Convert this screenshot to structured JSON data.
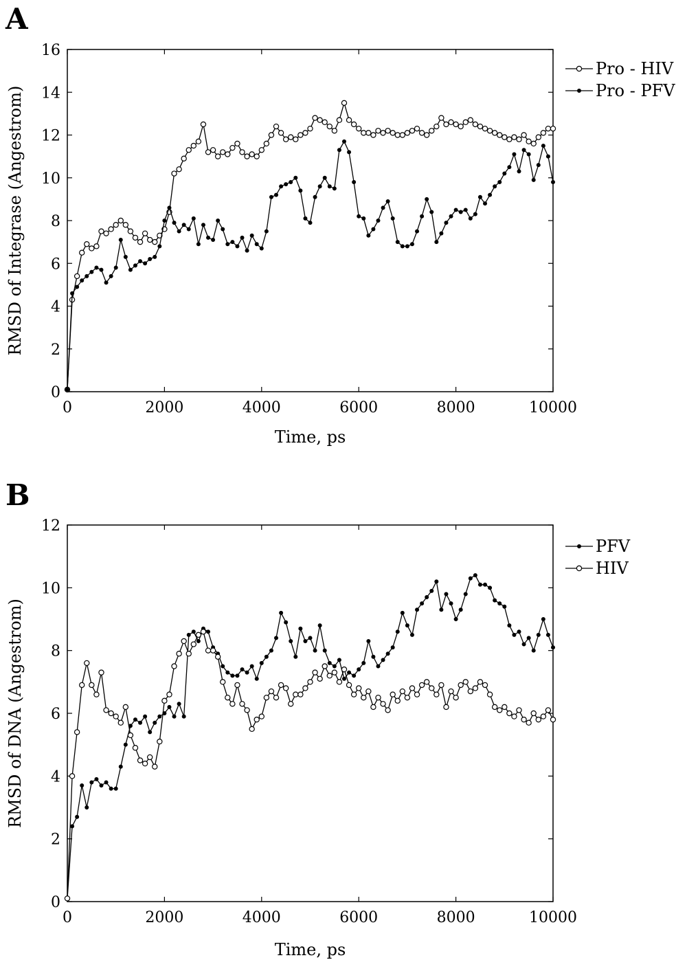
{
  "chart_data": [
    {
      "panel": "A",
      "type": "line",
      "xlabel": "Time, ps",
      "ylabel": "RMSD of Integrase (Angestrom)",
      "xlim": [
        0,
        10000
      ],
      "ylim": [
        0,
        16
      ],
      "xticks": [
        0,
        2000,
        4000,
        6000,
        8000,
        10000
      ],
      "yticks": [
        0,
        2,
        4,
        6,
        8,
        10,
        12,
        14,
        16
      ],
      "legend_position": "right-top",
      "series": [
        {
          "name": "Pro - HIV",
          "marker": "open-circle",
          "x": [
            0,
            100,
            200,
            300,
            400,
            500,
            600,
            700,
            800,
            900,
            1000,
            1100,
            1200,
            1300,
            1400,
            1500,
            1600,
            1700,
            1800,
            1900,
            2000,
            2100,
            2200,
            2300,
            2400,
            2500,
            2600,
            2700,
            2800,
            2900,
            3000,
            3100,
            3200,
            3300,
            3400,
            3500,
            3600,
            3700,
            3800,
            3900,
            4000,
            4100,
            4200,
            4300,
            4400,
            4500,
            4600,
            4700,
            4800,
            4900,
            5000,
            5100,
            5200,
            5300,
            5400,
            5500,
            5600,
            5700,
            5800,
            5900,
            6000,
            6100,
            6200,
            6300,
            6400,
            6500,
            6600,
            6700,
            6800,
            6900,
            7000,
            7100,
            7200,
            7300,
            7400,
            7500,
            7600,
            7700,
            7800,
            7900,
            8000,
            8100,
            8200,
            8300,
            8400,
            8500,
            8600,
            8700,
            8800,
            8900,
            9000,
            9100,
            9200,
            9300,
            9400,
            9500,
            9600,
            9700,
            9800,
            9900,
            10000
          ],
          "y": [
            0.1,
            4.3,
            5.4,
            6.5,
            6.9,
            6.7,
            6.8,
            7.5,
            7.4,
            7.6,
            7.8,
            8.0,
            7.8,
            7.5,
            7.2,
            7.0,
            7.4,
            7.1,
            7.0,
            7.3,
            7.6,
            8.4,
            10.2,
            10.4,
            10.9,
            11.3,
            11.5,
            11.7,
            12.5,
            11.2,
            11.3,
            11.0,
            11.2,
            11.1,
            11.4,
            11.6,
            11.2,
            11.0,
            11.1,
            11.0,
            11.3,
            11.6,
            12.0,
            12.4,
            12.1,
            11.8,
            11.9,
            11.8,
            12.0,
            12.1,
            12.3,
            12.8,
            12.7,
            12.6,
            12.4,
            12.2,
            12.7,
            13.5,
            12.7,
            12.5,
            12.3,
            12.1,
            12.1,
            12.0,
            12.2,
            12.1,
            12.2,
            12.1,
            12.0,
            12.0,
            12.1,
            12.2,
            12.3,
            12.1,
            12.0,
            12.2,
            12.4,
            12.8,
            12.5,
            12.6,
            12.5,
            12.4,
            12.6,
            12.7,
            12.5,
            12.4,
            12.3,
            12.2,
            12.1,
            12.0,
            11.9,
            11.8,
            11.9,
            11.8,
            12.0,
            11.7,
            11.6,
            11.9,
            12.1,
            12.3,
            12.3
          ]
        },
        {
          "name": "Pro - PFV",
          "marker": "filled-circle",
          "x": [
            0,
            100,
            200,
            300,
            400,
            500,
            600,
            700,
            800,
            900,
            1000,
            1100,
            1200,
            1300,
            1400,
            1500,
            1600,
            1700,
            1800,
            1900,
            2000,
            2100,
            2200,
            2300,
            2400,
            2500,
            2600,
            2700,
            2800,
            2900,
            3000,
            3100,
            3200,
            3300,
            3400,
            3500,
            3600,
            3700,
            3800,
            3900,
            4000,
            4100,
            4200,
            4300,
            4400,
            4500,
            4600,
            4700,
            4800,
            4900,
            5000,
            5100,
            5200,
            5300,
            5400,
            5500,
            5600,
            5700,
            5800,
            5900,
            6000,
            6100,
            6200,
            6300,
            6400,
            6500,
            6600,
            6700,
            6800,
            6900,
            7000,
            7100,
            7200,
            7300,
            7400,
            7500,
            7600,
            7700,
            7800,
            7900,
            8000,
            8100,
            8200,
            8300,
            8400,
            8500,
            8600,
            8700,
            8800,
            8900,
            9000,
            9100,
            9200,
            9300,
            9400,
            9500,
            9600,
            9700,
            9800,
            9900,
            10000
          ],
          "y": [
            0.1,
            4.6,
            4.9,
            5.2,
            5.4,
            5.6,
            5.8,
            5.7,
            5.1,
            5.4,
            5.8,
            7.1,
            6.3,
            5.7,
            5.9,
            6.1,
            6.0,
            6.2,
            6.3,
            6.8,
            8.0,
            8.6,
            7.9,
            7.5,
            7.8,
            7.6,
            8.1,
            6.9,
            7.8,
            7.2,
            7.1,
            8.0,
            7.6,
            6.9,
            7.0,
            6.8,
            7.2,
            6.6,
            7.3,
            6.9,
            6.7,
            7.5,
            9.1,
            9.2,
            9.6,
            9.7,
            9.8,
            10.0,
            9.4,
            8.1,
            7.9,
            9.1,
            9.6,
            10.0,
            9.6,
            9.5,
            11.3,
            11.7,
            11.2,
            9.8,
            8.2,
            8.1,
            7.3,
            7.6,
            8.0,
            8.6,
            8.9,
            8.1,
            7.0,
            6.8,
            6.8,
            6.9,
            7.5,
            8.2,
            9.0,
            8.4,
            7.0,
            7.4,
            7.9,
            8.2,
            8.5,
            8.4,
            8.5,
            8.1,
            8.3,
            9.1,
            8.8,
            9.2,
            9.6,
            9.8,
            10.2,
            10.5,
            11.1,
            10.3,
            11.3,
            11.1,
            9.9,
            10.6,
            11.5,
            11.0,
            9.8
          ]
        }
      ]
    },
    {
      "panel": "B",
      "type": "line",
      "xlabel": "Time, ps",
      "ylabel": "RMSD of DNA (Angestrom)",
      "xlim": [
        0,
        10000
      ],
      "ylim": [
        0,
        12
      ],
      "xticks": [
        0,
        2000,
        4000,
        6000,
        8000,
        10000
      ],
      "yticks": [
        0,
        2,
        4,
        6,
        8,
        10,
        12
      ],
      "legend_position": "right-top",
      "series": [
        {
          "name": "PFV",
          "marker": "filled-circle",
          "x": [
            0,
            100,
            200,
            300,
            400,
            500,
            600,
            700,
            800,
            900,
            1000,
            1100,
            1200,
            1300,
            1400,
            1500,
            1600,
            1700,
            1800,
            1900,
            2000,
            2100,
            2200,
            2300,
            2400,
            2500,
            2600,
            2700,
            2800,
            2900,
            3000,
            3100,
            3200,
            3300,
            3400,
            3500,
            3600,
            3700,
            3800,
            3900,
            4000,
            4100,
            4200,
            4300,
            4400,
            4500,
            4600,
            4700,
            4800,
            4900,
            5000,
            5100,
            5200,
            5300,
            5400,
            5500,
            5600,
            5700,
            5800,
            5900,
            6000,
            6100,
            6200,
            6300,
            6400,
            6500,
            6600,
            6700,
            6800,
            6900,
            7000,
            7100,
            7200,
            7300,
            7400,
            7500,
            7600,
            7700,
            7800,
            7900,
            8000,
            8100,
            8200,
            8300,
            8400,
            8500,
            8600,
            8700,
            8800,
            8900,
            9000,
            9100,
            9200,
            9300,
            9400,
            9500,
            9600,
            9700,
            9800,
            9900,
            10000
          ],
          "y": [
            0.1,
            2.4,
            2.7,
            3.7,
            3.0,
            3.8,
            3.9,
            3.7,
            3.8,
            3.6,
            3.6,
            4.3,
            5.0,
            5.6,
            5.8,
            5.7,
            5.9,
            5.4,
            5.7,
            5.9,
            6.0,
            6.2,
            5.9,
            6.3,
            5.9,
            8.5,
            8.6,
            8.3,
            8.7,
            8.6,
            8.1,
            7.9,
            7.5,
            7.3,
            7.2,
            7.2,
            7.4,
            7.3,
            7.5,
            7.1,
            7.6,
            7.8,
            8.0,
            8.4,
            9.2,
            8.9,
            8.3,
            7.8,
            8.7,
            8.3,
            8.4,
            8.0,
            8.8,
            8.0,
            7.6,
            7.5,
            7.7,
            7.1,
            7.3,
            7.2,
            7.4,
            7.6,
            8.3,
            7.8,
            7.5,
            7.7,
            7.9,
            8.1,
            8.6,
            9.2,
            8.8,
            8.5,
            9.3,
            9.5,
            9.7,
            9.9,
            10.2,
            9.3,
            9.8,
            9.5,
            9.0,
            9.3,
            9.8,
            10.3,
            10.4,
            10.1,
            10.1,
            10.0,
            9.6,
            9.5,
            9.4,
            8.8,
            8.5,
            8.6,
            8.2,
            8.4,
            8.0,
            8.5,
            9.0,
            8.5,
            8.1
          ]
        },
        {
          "name": "HIV",
          "marker": "open-circle",
          "x": [
            0,
            100,
            200,
            300,
            400,
            500,
            600,
            700,
            800,
            900,
            1000,
            1100,
            1200,
            1300,
            1400,
            1500,
            1600,
            1700,
            1800,
            1900,
            2000,
            2100,
            2200,
            2300,
            2400,
            2500,
            2600,
            2700,
            2800,
            2900,
            3000,
            3100,
            3200,
            3300,
            3400,
            3500,
            3600,
            3700,
            3800,
            3900,
            4000,
            4100,
            4200,
            4300,
            4400,
            4500,
            4600,
            4700,
            4800,
            4900,
            5000,
            5100,
            5200,
            5300,
            5400,
            5500,
            5600,
            5700,
            5800,
            5900,
            6000,
            6100,
            6200,
            6300,
            6400,
            6500,
            6600,
            6700,
            6800,
            6900,
            7000,
            7100,
            7200,
            7300,
            7400,
            7500,
            7600,
            7700,
            7800,
            7900,
            8000,
            8100,
            8200,
            8300,
            8400,
            8500,
            8600,
            8700,
            8800,
            8900,
            9000,
            9100,
            9200,
            9300,
            9400,
            9500,
            9600,
            9700,
            9800,
            9900,
            10000
          ],
          "y": [
            0.1,
            4.0,
            5.4,
            6.9,
            7.6,
            6.9,
            6.6,
            7.3,
            6.1,
            6.0,
            5.9,
            5.7,
            6.2,
            5.3,
            4.9,
            4.5,
            4.4,
            4.6,
            4.3,
            5.1,
            6.4,
            6.6,
            7.5,
            7.9,
            8.3,
            7.9,
            8.2,
            8.5,
            8.6,
            8.0,
            8.0,
            7.8,
            7.0,
            6.5,
            6.3,
            6.9,
            6.3,
            6.1,
            5.5,
            5.8,
            5.9,
            6.5,
            6.7,
            6.5,
            6.9,
            6.8,
            6.3,
            6.6,
            6.6,
            6.8,
            7.0,
            7.3,
            7.1,
            7.5,
            7.2,
            7.3,
            7.0,
            7.4,
            6.9,
            6.6,
            6.8,
            6.5,
            6.7,
            6.2,
            6.5,
            6.3,
            6.1,
            6.6,
            6.4,
            6.7,
            6.5,
            6.8,
            6.6,
            6.9,
            7.0,
            6.8,
            6.6,
            6.9,
            6.2,
            6.7,
            6.5,
            6.9,
            7.0,
            6.7,
            6.8,
            7.0,
            6.9,
            6.6,
            6.2,
            6.1,
            6.2,
            6.0,
            5.9,
            6.1,
            5.8,
            5.7,
            6.0,
            5.8,
            5.9,
            6.1,
            5.8
          ]
        }
      ]
    }
  ]
}
